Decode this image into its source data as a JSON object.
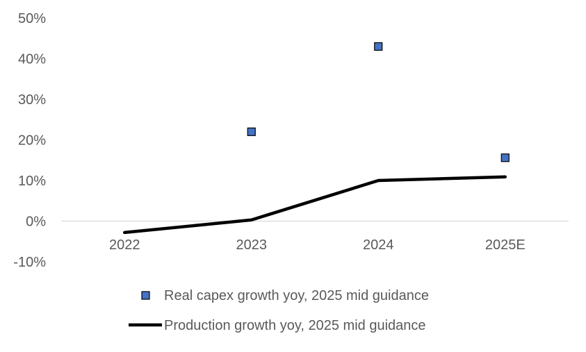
{
  "chart_data": {
    "type": "line",
    "categories": [
      "2022",
      "2023",
      "2024",
      "2025E"
    ],
    "y_ticks": [
      "-10%",
      "0%",
      "10%",
      "20%",
      "30%",
      "40%",
      "50%"
    ],
    "ylim": [
      -10,
      50
    ],
    "grid": false,
    "legend_position": "bottom",
    "series": [
      {
        "name": "Real capex growth yoy, 2025 mid guidance",
        "type": "scatter",
        "marker": "square",
        "color": "#4472C4",
        "values": [
          null,
          22,
          43,
          15.6
        ]
      },
      {
        "name": "Production growth yoy, 2025 mid guidance",
        "type": "line",
        "color": "#000000",
        "values": [
          -2.8,
          0.3,
          10,
          10.9
        ]
      }
    ]
  }
}
